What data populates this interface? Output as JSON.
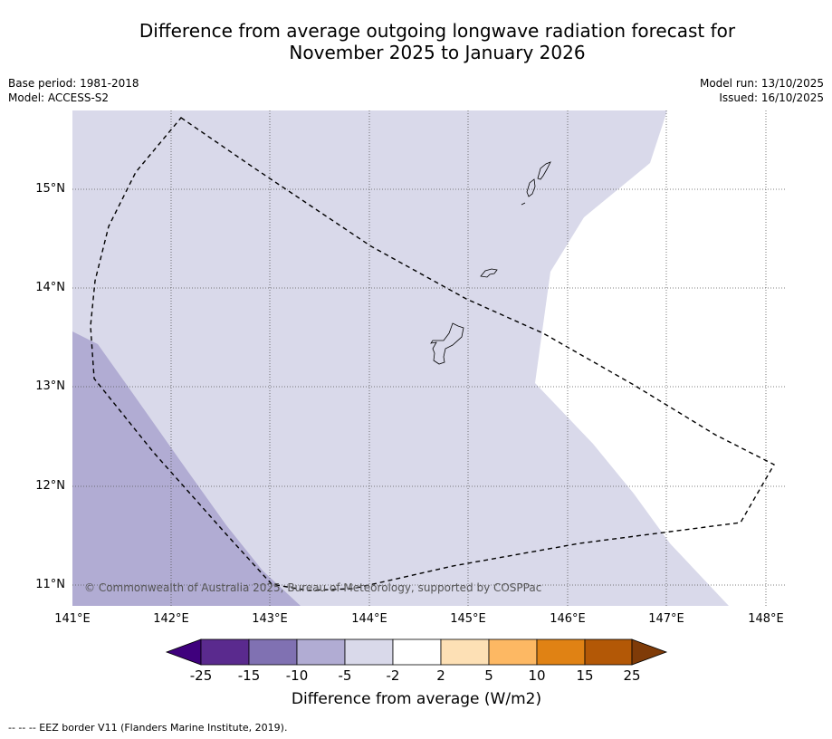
{
  "title": {
    "line1": "Difference from average outgoing longwave radiation forecast for",
    "line2": "November 2025 to January 2026"
  },
  "meta_left": {
    "base_period": "Base period: 1981-2018",
    "model": "Model: ACCESS-S2"
  },
  "meta_right": {
    "model_run": "Model run: 13/10/2025",
    "issued": "Issued: 16/10/2025"
  },
  "map": {
    "lat_labels": [
      "15°N",
      "14°N",
      "13°N",
      "12°N",
      "11°N"
    ],
    "lon_labels": [
      "141°E",
      "142°E",
      "143°E",
      "144°E",
      "145°E",
      "146°E",
      "147°E",
      "148°E"
    ],
    "copyright": "© Commonwealth of Australia 2025, Bureau of Meteorology, supported by COSPPac",
    "colors": {
      "light_lavender": "#d9d9ea",
      "medium_lavender": "#b1acd3",
      "background": "#ffffff"
    }
  },
  "colorbar": {
    "ticks": [
      "-25",
      "-15",
      "-10",
      "-5",
      "-2",
      "2",
      "5",
      "10",
      "15",
      "25"
    ],
    "colors": [
      "#3f007d",
      "#5a2a8e",
      "#8071b2",
      "#b1acd3",
      "#d9d9ea",
      "#ffffff",
      "#fde0b5",
      "#fdb863",
      "#e08214",
      "#b35806",
      "#7f3b08"
    ],
    "label": "Difference from average (W/m2)"
  },
  "footer": {
    "eez_legend": "--  --  -- EEZ border V11 (Flanders Marine Institute, 2019)."
  }
}
